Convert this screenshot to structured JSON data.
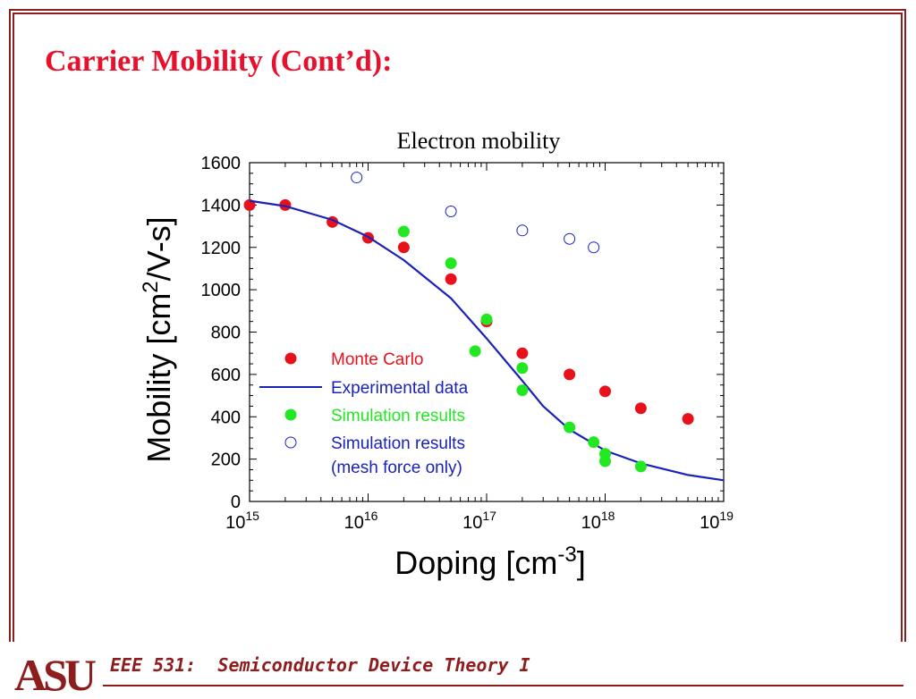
{
  "slide": {
    "title": "Carrier Mobility (Cont’d):",
    "footer_course": "EEE 531:  Semiconductor Device Theory I",
    "logo_text": "ASU",
    "frame_color": "#8e1d1d",
    "title_color": "#e8112d"
  },
  "chart_data": {
    "type": "scatter",
    "title": "Electron mobility",
    "xlabel": "Doping  [cm⁻³]",
    "ylabel": "Mobility  [cm²/V-s]",
    "x_scale": "log",
    "xlim": [
      1000000000000000.0,
      1e+19
    ],
    "ylim": [
      0,
      1600
    ],
    "x_tick_labels": [
      "10¹⁵",
      "10¹⁶",
      "10¹⁷",
      "10¹⁸",
      "10¹⁹"
    ],
    "y_tick_labels": [
      "0",
      "200",
      "400",
      "600",
      "800",
      "1000",
      "1200",
      "1400",
      "1600"
    ],
    "grid": false,
    "legend_position": "bottom-left",
    "series": [
      {
        "name": "Monte Carlo",
        "style": "filled-circle",
        "color": "#e8111b",
        "x": [
          1000000000000000.0,
          2000000000000000.0,
          5000000000000000.0,
          1e+16,
          2e+16,
          5e+16,
          1e+17,
          2e+17,
          5e+17,
          1e+18,
          2e+18,
          5e+18
        ],
        "y": [
          1400,
          1400,
          1320,
          1245,
          1200,
          1050,
          850,
          700,
          600,
          520,
          440,
          390
        ]
      },
      {
        "name": "Experimental data",
        "style": "line",
        "color": "#1a22b8",
        "x": [
          1000000000000000.0,
          2000000000000000.0,
          5000000000000000.0,
          1e+16,
          2e+16,
          5e+16,
          1e+17,
          2e+17,
          3e+17,
          5e+17,
          1e+18,
          2e+18,
          5e+18,
          1e+19
        ],
        "y": [
          1420,
          1395,
          1330,
          1250,
          1140,
          960,
          770,
          570,
          450,
          340,
          240,
          180,
          125,
          100
        ]
      },
      {
        "name": "Simulation results",
        "style": "filled-circle",
        "color": "#22e822",
        "x": [
          2e+16,
          5e+16,
          8e+16,
          1e+17,
          2e+17,
          2e+17,
          5e+17,
          8e+17,
          1e+18,
          1e+18,
          2e+18
        ],
        "y": [
          1275,
          1125,
          710,
          860,
          630,
          525,
          350,
          280,
          225,
          190,
          165
        ]
      },
      {
        "name": "Simulation results (mesh force only)",
        "legend_lines": [
          "Simulation results",
          "(mesh force only)"
        ],
        "style": "open-circle",
        "color": "#1a22b8",
        "x": [
          8000000000000000.0,
          5e+16,
          2e+17,
          5e+17,
          8e+17
        ],
        "y": [
          1530,
          1370,
          1280,
          1240,
          1200
        ]
      }
    ]
  }
}
